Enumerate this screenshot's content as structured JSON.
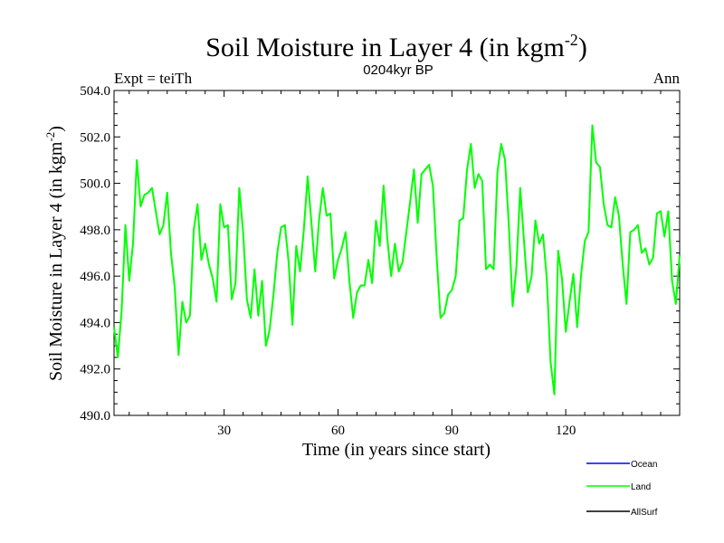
{
  "chart_data": {
    "type": "line",
    "title": "Soil Moisture in Layer 4 (in kgm",
    "title_sup": "-2",
    "title_end": ")",
    "subtitle": "0204kyr BP",
    "left_label": "Expt = teiTh",
    "right_label": "Ann",
    "xlabel": "Time (in years since start)",
    "ylabel": "Soil Moisture in Layer 4 (in kgm",
    "ylabel_sup": "-2",
    "ylabel_end": ")",
    "xlim": [
      1,
      150
    ],
    "ylim": [
      490.0,
      504.0
    ],
    "xticks": [
      30,
      60,
      90,
      120
    ],
    "yticks": [
      "490.0",
      "492.0",
      "494.0",
      "496.0",
      "498.0",
      "500.0",
      "502.0",
      "504.0"
    ],
    "colors": {
      "Ocean": "#0000ff",
      "Land": "#00ff00",
      "AllSurf": "#000000"
    },
    "series": [
      {
        "name": "Land",
        "x": [
          1,
          2,
          3,
          4,
          5,
          6,
          7,
          8,
          9,
          10,
          11,
          12,
          13,
          14,
          15,
          16,
          17,
          18,
          19,
          20,
          21,
          22,
          23,
          24,
          25,
          26,
          27,
          28,
          29,
          30,
          31,
          32,
          33,
          34,
          35,
          36,
          37,
          38,
          39,
          40,
          41,
          42,
          43,
          44,
          45,
          46,
          47,
          48,
          49,
          50,
          51,
          52,
          53,
          54,
          55,
          56,
          57,
          58,
          59,
          60,
          61,
          62,
          63,
          64,
          65,
          66,
          67,
          68,
          69,
          70,
          71,
          72,
          73,
          74,
          75,
          76,
          77,
          78,
          79,
          80,
          81,
          82,
          83,
          84,
          85,
          86,
          87,
          88,
          89,
          90,
          91,
          92,
          93,
          94,
          95,
          96,
          97,
          98,
          99,
          100,
          101,
          102,
          103,
          104,
          105,
          106,
          107,
          108,
          109,
          110,
          111,
          112,
          113,
          114,
          115,
          116,
          117,
          118,
          119,
          120,
          121,
          122,
          123,
          124,
          125,
          126,
          127,
          128,
          129,
          130,
          131,
          132,
          133,
          134,
          135,
          136,
          137,
          138,
          139,
          140,
          141,
          142,
          143,
          144,
          145,
          146,
          147,
          148,
          149,
          150
        ],
        "values": [
          493.8,
          492.5,
          494.5,
          498.2,
          495.8,
          497.4,
          501.0,
          499.0,
          499.5,
          499.6,
          499.8,
          498.8,
          497.8,
          498.2,
          499.6,
          497.0,
          495.5,
          492.6,
          494.9,
          494.0,
          494.3,
          498.0,
          499.1,
          496.7,
          497.4,
          496.5,
          495.9,
          494.9,
          499.1,
          498.1,
          498.2,
          495.0,
          495.7,
          499.8,
          497.9,
          495.0,
          494.2,
          496.3,
          494.3,
          495.8,
          493.0,
          493.7,
          495.2,
          497.0,
          498.1,
          498.2,
          496.6,
          493.9,
          497.3,
          496.2,
          498.0,
          500.3,
          498.3,
          496.2,
          498.4,
          499.8,
          498.6,
          498.7,
          495.9,
          496.7,
          497.2,
          497.9,
          495.8,
          494.2,
          495.3,
          495.6,
          495.6,
          496.7,
          495.7,
          498.4,
          497.3,
          499.9,
          497.6,
          496.0,
          497.4,
          496.2,
          496.6,
          497.9,
          499.2,
          500.6,
          498.3,
          500.4,
          500.6,
          500.8,
          499.9,
          496.8,
          494.2,
          494.4,
          495.2,
          495.4,
          496.0,
          498.4,
          498.5,
          500.6,
          501.7,
          499.8,
          500.4,
          500.1,
          496.3,
          496.5,
          496.3,
          500.5,
          501.7,
          501.0,
          498.2,
          494.7,
          496.4,
          499.8,
          497.5,
          495.3,
          496.0,
          498.4,
          497.4,
          497.8,
          495.9,
          492.3,
          490.9,
          497.1,
          495.9,
          493.6,
          494.9,
          496.1,
          493.8,
          496.0,
          497.5,
          497.9,
          502.5,
          500.9,
          500.7,
          499.1,
          498.2,
          498.1,
          499.4,
          498.6,
          496.5,
          494.8,
          497.9,
          498.0,
          498.2,
          497.0,
          497.2,
          496.5,
          496.8,
          498.7,
          498.8,
          497.7,
          498.8,
          495.8,
          494.8,
          496.9
        ]
      }
    ],
    "legend": [
      {
        "name": "Ocean"
      },
      {
        "name": "Land"
      },
      {
        "name": "AllSurf"
      }
    ]
  }
}
